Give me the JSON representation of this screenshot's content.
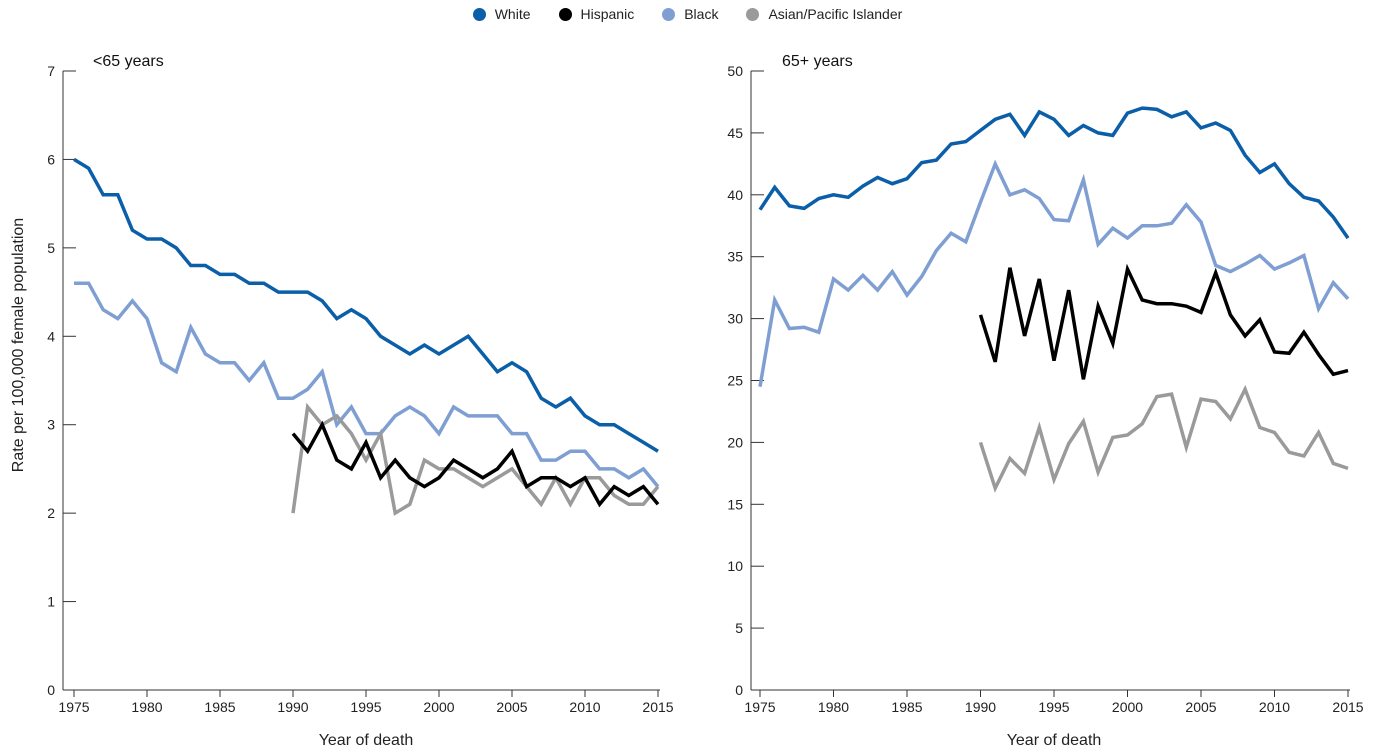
{
  "legend": [
    {
      "name": "White",
      "color": "#0b5ea8"
    },
    {
      "name": "Hispanic",
      "color": "#000000"
    },
    {
      "name": "Black",
      "color": "#7f9fd3"
    },
    {
      "name": "Asian/Pacific Islander",
      "color": "#9a9a9a"
    }
  ],
  "y_axis_label": "Rate per 100,000 female population",
  "chart_data": [
    {
      "type": "line",
      "title": "<65 years",
      "xlabel": "Year of death",
      "ylabel": "Rate per 100,000 female population",
      "xlim": [
        1975,
        2015
      ],
      "ylim": [
        0,
        7
      ],
      "x_ticks": [
        1975,
        1980,
        1985,
        1990,
        1995,
        2000,
        2005,
        2010,
        2015
      ],
      "y_ticks": [
        0,
        1,
        2,
        3,
        4,
        5,
        6,
        7
      ],
      "grid": false,
      "series": [
        {
          "name": "White",
          "color": "#0b5ea8",
          "x": [
            1975,
            1976,
            1977,
            1978,
            1979,
            1980,
            1981,
            1982,
            1983,
            1984,
            1985,
            1986,
            1987,
            1988,
            1989,
            1990,
            1991,
            1992,
            1993,
            1994,
            1995,
            1996,
            1997,
            1998,
            1999,
            2000,
            2001,
            2002,
            2003,
            2004,
            2005,
            2006,
            2007,
            2008,
            2009,
            2010,
            2011,
            2012,
            2013,
            2014,
            2015
          ],
          "y": [
            6.0,
            5.9,
            5.6,
            5.6,
            5.2,
            5.1,
            5.1,
            5.0,
            4.8,
            4.8,
            4.7,
            4.7,
            4.6,
            4.6,
            4.5,
            4.5,
            4.5,
            4.4,
            4.2,
            4.3,
            4.2,
            4.0,
            3.9,
            3.8,
            3.9,
            3.8,
            3.9,
            4.0,
            3.8,
            3.6,
            3.7,
            3.6,
            3.3,
            3.2,
            3.3,
            3.1,
            3.0,
            3.0,
            2.9,
            2.8,
            2.7
          ]
        },
        {
          "name": "Black",
          "color": "#7f9fd3",
          "x": [
            1975,
            1976,
            1977,
            1978,
            1979,
            1980,
            1981,
            1982,
            1983,
            1984,
            1985,
            1986,
            1987,
            1988,
            1989,
            1990,
            1991,
            1992,
            1993,
            1994,
            1995,
            1996,
            1997,
            1998,
            1999,
            2000,
            2001,
            2002,
            2003,
            2004,
            2005,
            2006,
            2007,
            2008,
            2009,
            2010,
            2011,
            2012,
            2013,
            2014,
            2015
          ],
          "y": [
            4.6,
            4.6,
            4.3,
            4.2,
            4.4,
            4.2,
            3.7,
            3.6,
            4.1,
            3.8,
            3.7,
            3.7,
            3.5,
            3.7,
            3.3,
            3.3,
            3.4,
            3.6,
            3.0,
            3.2,
            2.9,
            2.9,
            3.1,
            3.2,
            3.1,
            2.9,
            3.2,
            3.1,
            3.1,
            3.1,
            2.9,
            2.9,
            2.6,
            2.6,
            2.7,
            2.7,
            2.5,
            2.5,
            2.4,
            2.5,
            2.3
          ]
        },
        {
          "name": "Asian/Pacific Islander",
          "color": "#9a9a9a",
          "x": [
            1990,
            1991,
            1992,
            1993,
            1994,
            1995,
            1996,
            1997,
            1998,
            1999,
            2000,
            2001,
            2002,
            2003,
            2004,
            2005,
            2006,
            2007,
            2008,
            2009,
            2010,
            2011,
            2012,
            2013,
            2014,
            2015
          ],
          "y": [
            2.0,
            3.2,
            3.0,
            3.1,
            2.9,
            2.6,
            2.9,
            2.0,
            2.1,
            2.6,
            2.5,
            2.5,
            2.4,
            2.3,
            2.4,
            2.5,
            2.3,
            2.1,
            2.4,
            2.1,
            2.4,
            2.4,
            2.2,
            2.1,
            2.1,
            2.3
          ]
        },
        {
          "name": "Hispanic",
          "color": "#000000",
          "x": [
            1990,
            1991,
            1992,
            1993,
            1994,
            1995,
            1996,
            1997,
            1998,
            1999,
            2000,
            2001,
            2002,
            2003,
            2004,
            2005,
            2006,
            2007,
            2008,
            2009,
            2010,
            2011,
            2012,
            2013,
            2014,
            2015
          ],
          "y": [
            2.9,
            2.7,
            3.0,
            2.6,
            2.5,
            2.8,
            2.4,
            2.6,
            2.4,
            2.3,
            2.4,
            2.6,
            2.5,
            2.4,
            2.5,
            2.7,
            2.3,
            2.4,
            2.4,
            2.3,
            2.4,
            2.1,
            2.3,
            2.2,
            2.3,
            2.1
          ]
        }
      ]
    },
    {
      "type": "line",
      "title": "65+ years",
      "xlabel": "Year of death",
      "ylabel": "",
      "xlim": [
        1975,
        2015
      ],
      "ylim": [
        0,
        50
      ],
      "x_ticks": [
        1975,
        1980,
        1985,
        1990,
        1995,
        2000,
        2005,
        2010,
        2015
      ],
      "y_ticks": [
        0,
        5,
        10,
        15,
        20,
        25,
        30,
        35,
        40,
        45,
        50
      ],
      "grid": false,
      "series": [
        {
          "name": "White",
          "color": "#0b5ea8",
          "x": [
            1975,
            1976,
            1977,
            1978,
            1979,
            1980,
            1981,
            1982,
            1983,
            1984,
            1985,
            1986,
            1987,
            1988,
            1989,
            1990,
            1991,
            1992,
            1993,
            1994,
            1995,
            1996,
            1997,
            1998,
            1999,
            2000,
            2001,
            2002,
            2003,
            2004,
            2005,
            2006,
            2007,
            2008,
            2009,
            2010,
            2011,
            2012,
            2013,
            2014,
            2015
          ],
          "y": [
            38.8,
            40.6,
            39.1,
            38.9,
            39.7,
            40.0,
            39.8,
            40.7,
            41.4,
            40.9,
            41.3,
            42.6,
            42.8,
            44.1,
            44.3,
            45.2,
            46.1,
            46.5,
            44.8,
            46.7,
            46.1,
            44.8,
            45.6,
            45.0,
            44.8,
            46.6,
            47.0,
            46.9,
            46.3,
            46.7,
            45.4,
            45.8,
            45.2,
            43.2,
            41.8,
            42.5,
            40.9,
            39.8,
            39.5,
            38.2,
            36.5
          ]
        },
        {
          "name": "Black",
          "color": "#7f9fd3",
          "x": [
            1975,
            1976,
            1977,
            1978,
            1979,
            1980,
            1981,
            1982,
            1983,
            1984,
            1985,
            1986,
            1987,
            1988,
            1989,
            1990,
            1991,
            1992,
            1993,
            1994,
            1995,
            1996,
            1997,
            1998,
            1999,
            2000,
            2001,
            2002,
            2003,
            2004,
            2005,
            2006,
            2007,
            2008,
            2009,
            2010,
            2011,
            2012,
            2013,
            2014,
            2015
          ],
          "y": [
            24.5,
            31.5,
            29.2,
            29.3,
            28.9,
            33.2,
            32.3,
            33.5,
            32.3,
            33.8,
            31.9,
            33.4,
            35.5,
            36.9,
            36.2,
            39.4,
            42.5,
            40.0,
            40.4,
            39.7,
            38.0,
            37.9,
            41.2,
            36.0,
            37.3,
            36.5,
            37.5,
            37.5,
            37.7,
            39.2,
            37.8,
            34.3,
            33.8,
            34.4,
            35.1,
            34.0,
            34.5,
            35.1,
            30.8,
            32.9,
            31.6
          ]
        },
        {
          "name": "Hispanic",
          "color": "#000000",
          "x": [
            1990,
            1991,
            1992,
            1993,
            1994,
            1995,
            1996,
            1997,
            1998,
            1999,
            2000,
            2001,
            2002,
            2003,
            2004,
            2005,
            2006,
            2007,
            2008,
            2009,
            2010,
            2011,
            2012,
            2013,
            2014,
            2015
          ],
          "y": [
            30.3,
            26.5,
            34.1,
            28.6,
            33.2,
            26.6,
            32.3,
            25.1,
            31.0,
            28.0,
            34.0,
            31.5,
            31.2,
            31.2,
            31.0,
            30.5,
            33.7,
            30.3,
            28.6,
            29.9,
            27.3,
            27.2,
            28.9,
            27.1,
            25.5,
            25.8
          ]
        },
        {
          "name": "Asian/Pacific Islander",
          "color": "#9a9a9a",
          "x": [
            1990,
            1991,
            1992,
            1993,
            1994,
            1995,
            1996,
            1997,
            1998,
            1999,
            2000,
            2001,
            2002,
            2003,
            2004,
            2005,
            2006,
            2007,
            2008,
            2009,
            2010,
            2011,
            2012,
            2013,
            2014,
            2015
          ],
          "y": [
            20.0,
            16.3,
            18.7,
            17.5,
            21.2,
            17.0,
            19.9,
            21.7,
            17.6,
            20.4,
            20.6,
            21.5,
            23.7,
            23.9,
            19.6,
            23.5,
            23.3,
            21.9,
            24.3,
            21.2,
            20.8,
            19.2,
            18.9,
            20.8,
            18.3,
            17.9
          ]
        }
      ]
    }
  ]
}
